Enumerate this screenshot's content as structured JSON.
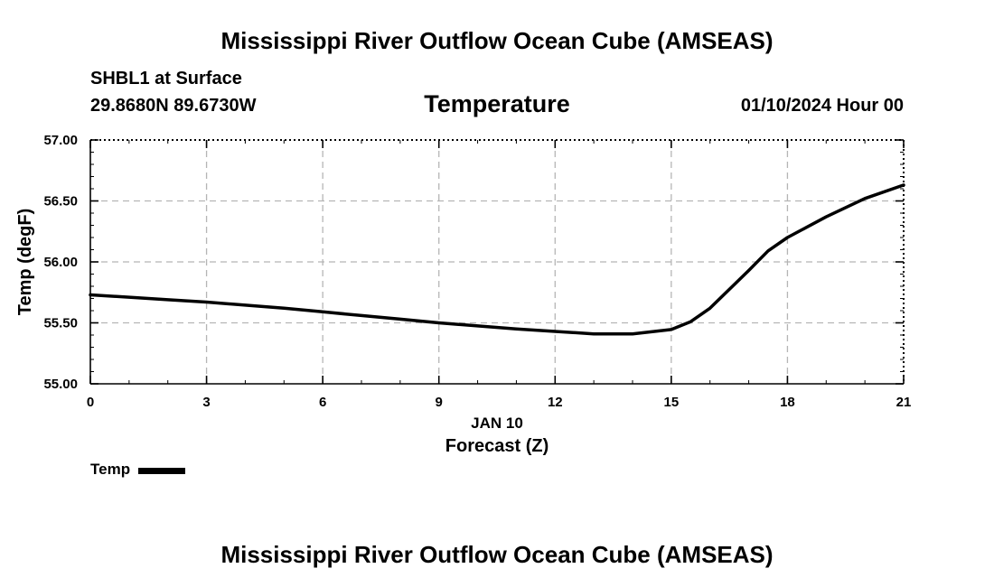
{
  "header": {
    "title": "Mississippi River Outflow Ocean Cube (AMSEAS)",
    "station": "SHBL1 at Surface",
    "coordinates": "29.8680N  89.6730W",
    "chart_title": "Temperature",
    "datetime": "01/10/2024 Hour 00"
  },
  "legend": {
    "label": "Temp"
  },
  "footer": {
    "title": "Mississippi River Outflow Ocean Cube (AMSEAS)"
  },
  "chart_data": {
    "type": "line",
    "title": "Temperature",
    "xlabel": "Forecast (Z)",
    "xsublabel": "JAN 10",
    "ylabel": "Temp (degF)",
    "xlim": [
      0,
      21
    ],
    "ylim": [
      55.0,
      57.0
    ],
    "xticks": [
      0,
      3,
      6,
      9,
      12,
      15,
      18,
      21
    ],
    "yticks": [
      55.0,
      55.5,
      56.0,
      56.5,
      57.0
    ],
    "ytick_labels": [
      "55.00",
      "55.50",
      "56.00",
      "56.50",
      "57.00"
    ],
    "grid": true,
    "legend_position": "bottom-left",
    "series": [
      {
        "name": "Temp",
        "x": [
          0,
          1,
          2,
          3,
          4,
          5,
          6,
          7,
          8,
          9,
          10,
          11,
          12,
          13,
          14,
          15,
          15.5,
          16,
          17,
          17.5,
          18,
          19,
          20,
          21
        ],
        "y": [
          55.73,
          55.71,
          55.69,
          55.67,
          55.645,
          55.62,
          55.59,
          55.56,
          55.53,
          55.5,
          55.475,
          55.45,
          55.43,
          55.41,
          55.41,
          55.445,
          55.51,
          55.62,
          55.93,
          56.09,
          56.2,
          56.37,
          56.52,
          56.63
        ]
      }
    ]
  }
}
